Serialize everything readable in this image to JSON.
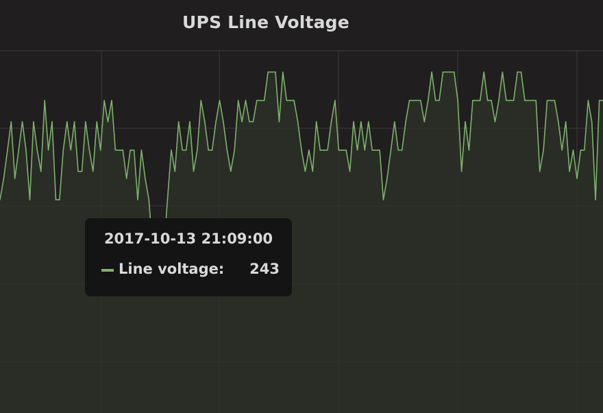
{
  "panel": {
    "title": "UPS Line Voltage"
  },
  "tooltip": {
    "time": "2017-10-13 21:09:00",
    "series_label": "Line voltage:",
    "value": "243"
  },
  "colors": {
    "background": "#201e1e",
    "grid": "#3b3b3b",
    "series_line": "#7eb26d",
    "series_fill": "#2e3329",
    "tooltip_bg": "#141414",
    "text": "#d8d9da"
  },
  "chart_data": {
    "type": "area",
    "title": "UPS Line Voltage",
    "grid": true,
    "series": [
      {
        "name": "Line voltage",
        "values": [
          243.2,
          243.5,
          243.9,
          244.3,
          243.5,
          243.9,
          244.3,
          243.9,
          243.2,
          244.3,
          243.9,
          243.6,
          244.6,
          243.9,
          244.3,
          243.2,
          243.2,
          243.9,
          244.3,
          243.9,
          244.3,
          243.6,
          243.6,
          244.3,
          243.9,
          243.6,
          244.3,
          243.9,
          244.6,
          244.3,
          244.6,
          243.9,
          243.9,
          243.9,
          243.5,
          243.9,
          243.9,
          243.2,
          243.9,
          243.5,
          243.2,
          242.5,
          242.8,
          242.1,
          242.5,
          243.2,
          243.9,
          243.6,
          244.3,
          243.9,
          243.9,
          244.3,
          243.6,
          243.9,
          244.6,
          244.3,
          243.9,
          243.9,
          244.3,
          244.6,
          244.3,
          243.9,
          243.6,
          243.9,
          244.6,
          244.3,
          244.6,
          244.3,
          244.3,
          244.6,
          244.6,
          244.6,
          245.0,
          245.0,
          245.0,
          244.3,
          245.0,
          244.6,
          244.6,
          244.6,
          244.3,
          243.9,
          243.6,
          243.9,
          243.6,
          244.3,
          243.9,
          243.9,
          243.9,
          244.3,
          244.6,
          243.9,
          243.9,
          243.9,
          243.6,
          244.3,
          243.9,
          244.3,
          243.9,
          244.3,
          243.9,
          243.9,
          243.9,
          243.2,
          243.5,
          243.9,
          244.3,
          243.9,
          243.9,
          244.3,
          244.6,
          244.6,
          244.6,
          244.6,
          244.3,
          244.6,
          245.0,
          244.6,
          244.6,
          245.0,
          245.0,
          245.0,
          245.0,
          244.6,
          243.6,
          244.3,
          243.9,
          244.6,
          244.6,
          244.6,
          245.0,
          244.6,
          244.6,
          244.3,
          244.6,
          245.0,
          244.6,
          244.6,
          244.6,
          245.0,
          245.0,
          244.6,
          244.6,
          244.6,
          244.6,
          243.6,
          243.9,
          244.6,
          244.6,
          244.6,
          244.3,
          243.9,
          244.3,
          243.6,
          243.9,
          243.5,
          243.9,
          243.9,
          244.6,
          244.3,
          243.2,
          244.6,
          244.6
        ],
        "annotation": "tooltip shows 243 at 2017-10-13 21:09:00"
      }
    ]
  }
}
